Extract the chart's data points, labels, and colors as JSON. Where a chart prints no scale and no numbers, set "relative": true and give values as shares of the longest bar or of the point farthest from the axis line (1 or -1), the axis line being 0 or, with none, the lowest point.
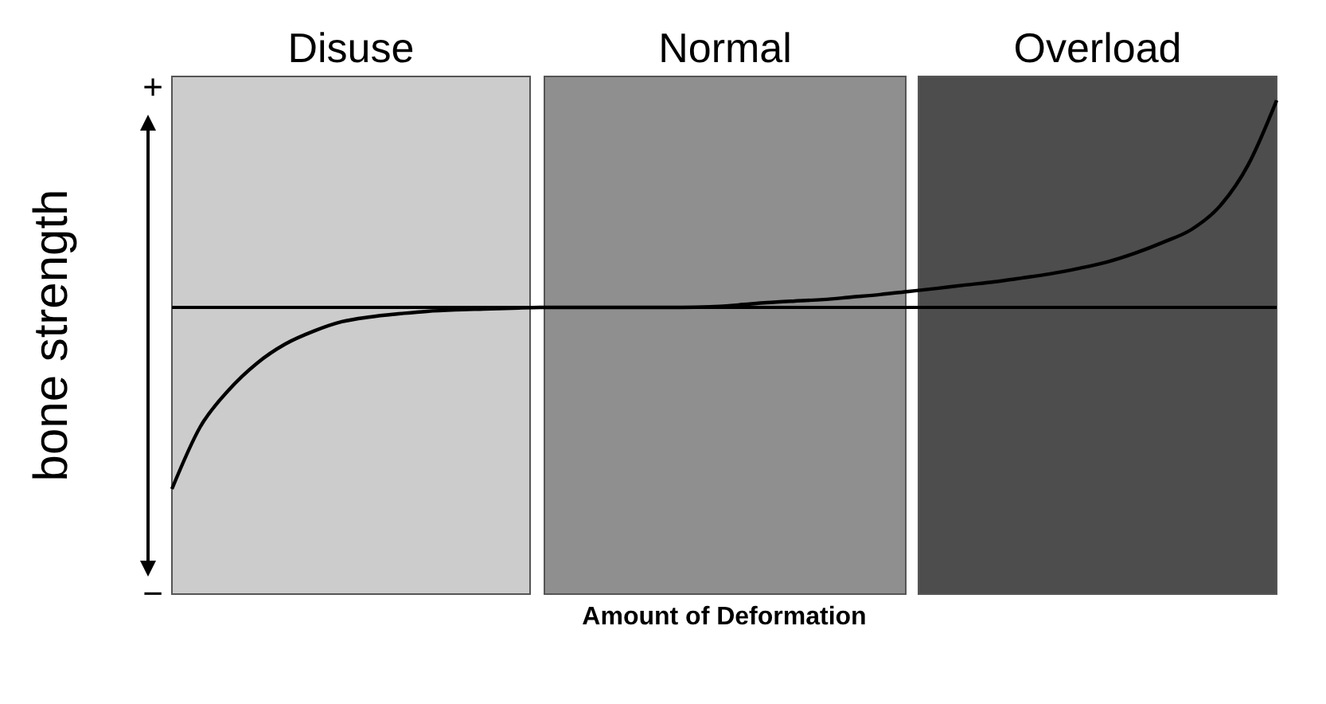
{
  "chart_data": {
    "type": "line",
    "relative": true,
    "xlabel": "Amount of Deformation",
    "ylabel": "bone strength",
    "categories": [
      null,
      null,
      null,
      null,
      null,
      null,
      null,
      null,
      null,
      null,
      null,
      null,
      null,
      null,
      null,
      null,
      null,
      null,
      null,
      null,
      null,
      null,
      null,
      null,
      null,
      null,
      null,
      null,
      null,
      null,
      null,
      null,
      null,
      null,
      null,
      null,
      null,
      null,
      null,
      null
    ],
    "series": [
      {
        "color": "#000000",
        "values": [
          -0.877,
          -0.577,
          -0.4,
          -0.27,
          -0.177,
          -0.115,
          -0.069,
          -0.046,
          -0.031,
          -0.019,
          -0.012,
          -0.008,
          -0.004,
          0,
          0,
          0,
          0,
          0,
          0,
          0.003,
          0.012,
          0.023,
          0.031,
          0.038,
          0.05,
          0.062,
          0.077,
          0.092,
          0.108,
          0.123,
          0.142,
          0.162,
          0.188,
          0.219,
          0.262,
          0.315,
          0.377,
          0.49,
          0.69,
          1.0
        ]
      }
    ],
    "annotations": [
      "Disuse",
      "Normal",
      "Overload",
      "+",
      "−"
    ]
  }
}
